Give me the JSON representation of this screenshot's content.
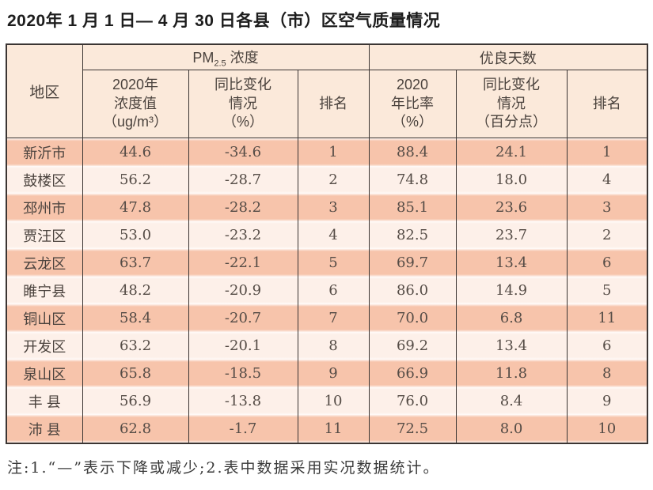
{
  "title": "2020年 1 月 1 日— 4 月 30 日各县（市）区空气质量情况",
  "note": "注:1.“—”表示下降或减少;2.表中数据采用实况数据统计。",
  "colors": {
    "header_bg": "#fbe9da",
    "row_odd_bg": "#f7c4ab",
    "row_even_bg": "#fdf0e9",
    "border": "#3b3533",
    "text": "#46403c"
  },
  "table": {
    "header": {
      "region": "地区",
      "pm25": {
        "prefix": "PM",
        "sub": "2.5",
        "suffix": " 浓度"
      },
      "good_days": "优良天数",
      "sub": [
        {
          "lines": [
            "2020年",
            "浓度值",
            "（ug/m³）"
          ]
        },
        {
          "lines": [
            "同比变化",
            "情况",
            "（%）"
          ]
        },
        {
          "lines": [
            "排名"
          ]
        },
        {
          "lines": [
            "2020",
            "年比率",
            "（%）"
          ]
        },
        {
          "lines": [
            "同比变化",
            "情况",
            "（百分点）"
          ]
        },
        {
          "lines": [
            "排名"
          ]
        }
      ]
    },
    "rows": [
      {
        "region": "新沂市",
        "pm_value": "44.6",
        "pm_change": "-34.6",
        "pm_rank": "1",
        "good_rate": "88.4",
        "good_change": "24.1",
        "good_rank": "1"
      },
      {
        "region": "鼓楼区",
        "pm_value": "56.2",
        "pm_change": "-28.7",
        "pm_rank": "2",
        "good_rate": "74.8",
        "good_change": "18.0",
        "good_rank": "4"
      },
      {
        "region": "邳州市",
        "pm_value": "47.8",
        "pm_change": "-28.2",
        "pm_rank": "3",
        "good_rate": "85.1",
        "good_change": "23.6",
        "good_rank": "3"
      },
      {
        "region": "贾汪区",
        "pm_value": "53.0",
        "pm_change": "-23.2",
        "pm_rank": "4",
        "good_rate": "82.5",
        "good_change": "23.7",
        "good_rank": "2"
      },
      {
        "region": "云龙区",
        "pm_value": "63.7",
        "pm_change": "-22.1",
        "pm_rank": "5",
        "good_rate": "69.7",
        "good_change": "13.4",
        "good_rank": "6"
      },
      {
        "region": "睢宁县",
        "pm_value": "48.2",
        "pm_change": "-20.9",
        "pm_rank": "6",
        "good_rate": "86.0",
        "good_change": "14.9",
        "good_rank": "5"
      },
      {
        "region": "铜山区",
        "pm_value": "58.4",
        "pm_change": "-20.7",
        "pm_rank": "7",
        "good_rate": "70.0",
        "good_change": "6.8",
        "good_rank": "11"
      },
      {
        "region": "开发区",
        "pm_value": "63.2",
        "pm_change": "-20.1",
        "pm_rank": "8",
        "good_rate": "69.2",
        "good_change": "13.4",
        "good_rank": "6"
      },
      {
        "region": "泉山区",
        "pm_value": "65.8",
        "pm_change": "-18.5",
        "pm_rank": "9",
        "good_rate": "66.9",
        "good_change": "11.8",
        "good_rank": "8"
      },
      {
        "region": "丰 县",
        "pm_value": "56.9",
        "pm_change": "-13.8",
        "pm_rank": "10",
        "good_rate": "76.0",
        "good_change": "8.4",
        "good_rank": "9"
      },
      {
        "region": "沛 县",
        "pm_value": "62.8",
        "pm_change": "-1.7",
        "pm_rank": "11",
        "good_rate": "72.5",
        "good_change": "8.0",
        "good_rank": "10"
      }
    ]
  }
}
